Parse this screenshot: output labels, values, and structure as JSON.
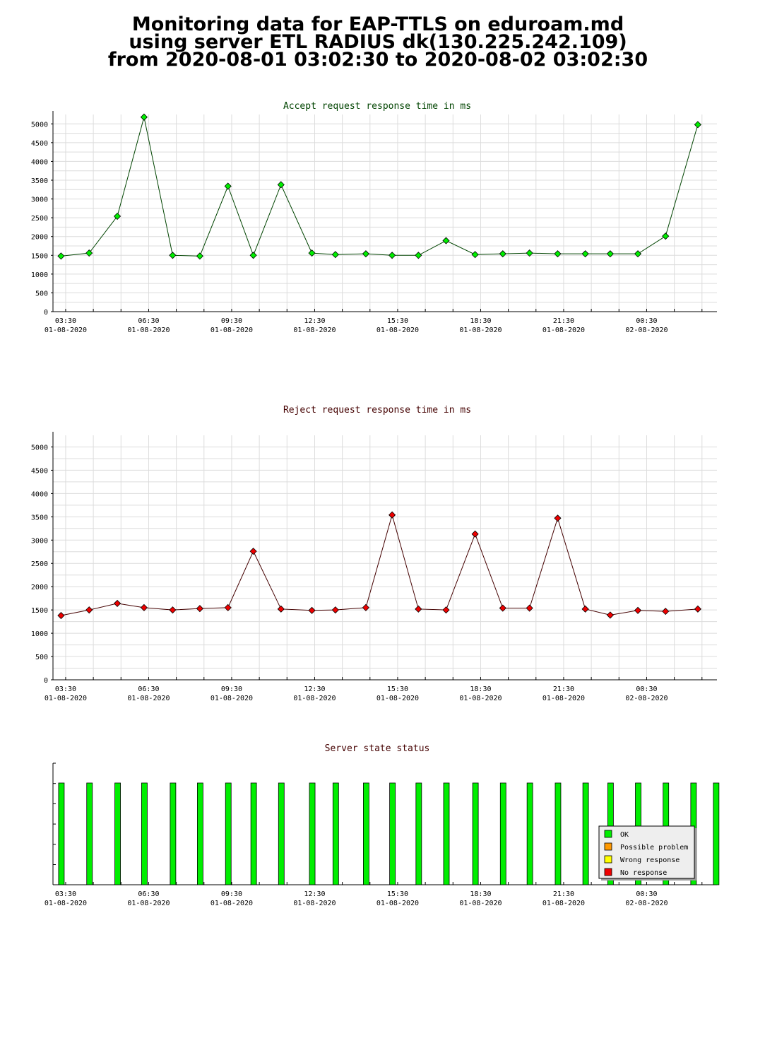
{
  "header": {
    "line1": "Monitoring data for EAP-TTLS on eduroam.md",
    "line2": "using server ETL RADIUS dk(130.225.242.109)",
    "line3": "from 2020-08-01 03:02:30 to 2020-08-02 03:02:30"
  },
  "colors": {
    "accept": "#00ee00",
    "reject": "#ee0000",
    "accept_title": "#004400",
    "reject_title": "#440000",
    "ok": "#00ee00",
    "possible_problem": "#ff9900",
    "wrong_response": "#ffff00",
    "no_response": "#ee0000"
  },
  "chart_data": [
    {
      "type": "line",
      "title": "Accept request response time in ms",
      "xlabel": "",
      "ylabel": "",
      "grid": true,
      "ylim": [
        0,
        5250
      ],
      "xlim": [
        "2020-08-01 03:02:30",
        "2020-08-02 03:02:30"
      ],
      "yticks": [
        "0",
        "500",
        "1000",
        "1500",
        "2000",
        "2500",
        "3000",
        "3500",
        "4000",
        "4500",
        "5000"
      ],
      "xticks": [
        {
          "time": "03:30",
          "date": "01-08-2020"
        },
        {
          "time": "06:30",
          "date": "01-08-2020"
        },
        {
          "time": "09:30",
          "date": "01-08-2020"
        },
        {
          "time": "12:30",
          "date": "01-08-2020"
        },
        {
          "time": "15:30",
          "date": "01-08-2020"
        },
        {
          "time": "18:30",
          "date": "01-08-2020"
        },
        {
          "time": "21:30",
          "date": "01-08-2020"
        },
        {
          "time": "00:30",
          "date": "02-08-2020"
        }
      ],
      "x": [
        "2020-08-01 03:20",
        "2020-08-01 04:21",
        "2020-08-01 05:22",
        "2020-08-01 06:20",
        "2020-08-01 07:22",
        "2020-08-01 08:21",
        "2020-08-01 09:22",
        "2020-08-01 10:17",
        "2020-08-01 11:17",
        "2020-08-01 12:24",
        "2020-08-01 13:15",
        "2020-08-01 14:21",
        "2020-08-01 15:18",
        "2020-08-01 16:15",
        "2020-08-01 17:15",
        "2020-08-01 18:18",
        "2020-08-01 19:18",
        "2020-08-01 20:16",
        "2020-08-01 21:17",
        "2020-08-01 22:17",
        "2020-08-01 23:11",
        "2020-08-02 00:11",
        "2020-08-02 01:11",
        "2020-08-02 02:21"
      ],
      "values": [
        1480,
        1560,
        2540,
        5180,
        1500,
        1480,
        3340,
        1500,
        3380,
        1560,
        1520,
        1540,
        1500,
        1500,
        1890,
        1520,
        1540,
        1560,
        1540,
        1540,
        1540,
        1540,
        2010,
        4980
      ]
    },
    {
      "type": "line",
      "title": "Reject request response time in ms",
      "xlabel": "",
      "ylabel": "",
      "grid": true,
      "ylim": [
        0,
        5250
      ],
      "xlim": [
        "2020-08-01 03:02:30",
        "2020-08-02 03:02:30"
      ],
      "yticks": [
        "0",
        "500",
        "1000",
        "1500",
        "2000",
        "2500",
        "3000",
        "3500",
        "4000",
        "4500",
        "5000"
      ],
      "xticks": [
        {
          "time": "03:30",
          "date": "01-08-2020"
        },
        {
          "time": "06:30",
          "date": "01-08-2020"
        },
        {
          "time": "09:30",
          "date": "01-08-2020"
        },
        {
          "time": "12:30",
          "date": "01-08-2020"
        },
        {
          "time": "15:30",
          "date": "01-08-2020"
        },
        {
          "time": "18:30",
          "date": "01-08-2020"
        },
        {
          "time": "21:30",
          "date": "01-08-2020"
        },
        {
          "time": "00:30",
          "date": "02-08-2020"
        }
      ],
      "x": [
        "2020-08-01 03:20",
        "2020-08-01 04:21",
        "2020-08-01 05:22",
        "2020-08-01 06:20",
        "2020-08-01 07:22",
        "2020-08-01 08:21",
        "2020-08-01 09:22",
        "2020-08-01 10:17",
        "2020-08-01 11:17",
        "2020-08-01 12:24",
        "2020-08-01 13:15",
        "2020-08-01 14:21",
        "2020-08-01 15:18",
        "2020-08-01 16:15",
        "2020-08-01 17:15",
        "2020-08-01 18:18",
        "2020-08-01 19:18",
        "2020-08-01 20:16",
        "2020-08-01 21:17",
        "2020-08-01 22:17",
        "2020-08-01 23:11",
        "2020-08-02 00:11",
        "2020-08-02 01:11",
        "2020-08-02 02:21"
      ],
      "values": [
        1380,
        1500,
        1640,
        1550,
        1500,
        1530,
        1550,
        2760,
        1520,
        1490,
        1500,
        1550,
        3540,
        1520,
        1500,
        3130,
        1540,
        1540,
        3470,
        1520,
        1390,
        1490,
        1470,
        1520
      ]
    },
    {
      "type": "bar",
      "title": "Server state status",
      "xlabel": "",
      "ylabel": "",
      "xlim": [
        "2020-08-01 03:02:30",
        "2020-08-02 03:02:30"
      ],
      "xticks": [
        {
          "time": "03:30",
          "date": "01-08-2020"
        },
        {
          "time": "06:30",
          "date": "01-08-2020"
        },
        {
          "time": "09:30",
          "date": "01-08-2020"
        },
        {
          "time": "12:30",
          "date": "01-08-2020"
        },
        {
          "time": "15:30",
          "date": "01-08-2020"
        },
        {
          "time": "18:30",
          "date": "01-08-2020"
        },
        {
          "time": "21:30",
          "date": "01-08-2020"
        },
        {
          "time": "00:30",
          "date": "02-08-2020"
        }
      ],
      "legend_position": "bottom-right",
      "legend": [
        {
          "label": "OK",
          "color": "#00ee00"
        },
        {
          "label": "Possible problem",
          "color": "#ff9900"
        },
        {
          "label": "Wrong response",
          "color": "#ffff00"
        },
        {
          "label": "No response",
          "color": "#ee0000"
        }
      ],
      "x": [
        "2020-08-01 03:20",
        "2020-08-01 04:21",
        "2020-08-01 05:22",
        "2020-08-01 06:20",
        "2020-08-01 07:22",
        "2020-08-01 08:21",
        "2020-08-01 09:22",
        "2020-08-01 10:17",
        "2020-08-01 11:17",
        "2020-08-01 12:24",
        "2020-08-01 13:15",
        "2020-08-01 14:21",
        "2020-08-01 15:18",
        "2020-08-01 16:15",
        "2020-08-01 17:15",
        "2020-08-01 18:18",
        "2020-08-01 19:18",
        "2020-08-01 20:16",
        "2020-08-01 21:17",
        "2020-08-01 22:17",
        "2020-08-01 23:11",
        "2020-08-02 00:11",
        "2020-08-02 01:11",
        "2020-08-02 02:11",
        "2020-08-02 03:00"
      ],
      "status": [
        "OK",
        "OK",
        "OK",
        "OK",
        "OK",
        "OK",
        "OK",
        "OK",
        "OK",
        "OK",
        "OK",
        "OK",
        "OK",
        "OK",
        "OK",
        "OK",
        "OK",
        "OK",
        "OK",
        "OK",
        "OK",
        "OK",
        "OK",
        "OK",
        "OK"
      ]
    }
  ]
}
